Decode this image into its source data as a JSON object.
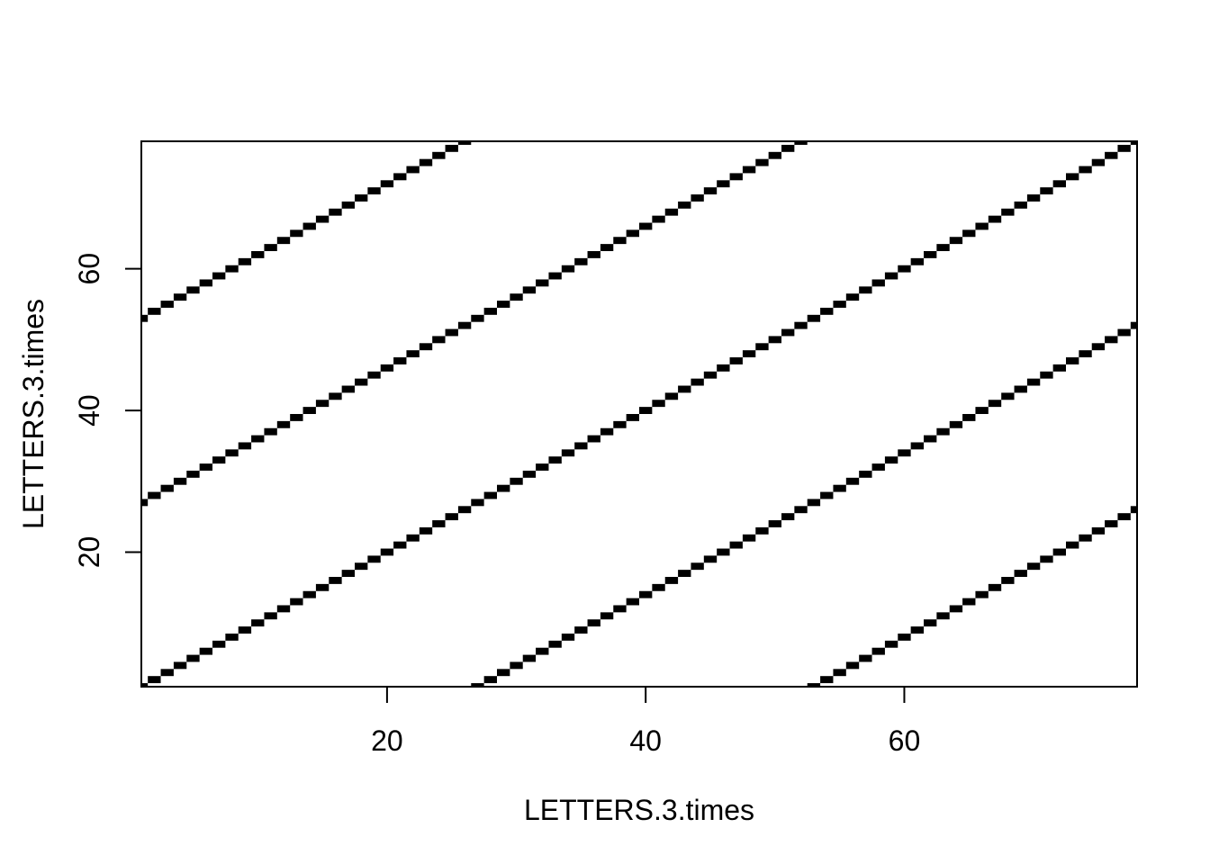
{
  "chart_data": {
    "type": "heatmap",
    "title": "",
    "xlabel": "LETTERS.3.times",
    "ylabel": "LETTERS.3.times",
    "xlim": [
      1,
      78
    ],
    "ylim": [
      1,
      78
    ],
    "x_ticks": [
      20,
      40,
      60
    ],
    "y_ticks": [
      20,
      40,
      60
    ],
    "n": 78,
    "period": 26,
    "cells_rule": "cell (i, j) is filled where i and j refer to the same letter, i.e. (i - j) is a multiple of 26",
    "fill_color": "#000000",
    "background": "#ffffff",
    "grid": false,
    "legend": "none"
  }
}
